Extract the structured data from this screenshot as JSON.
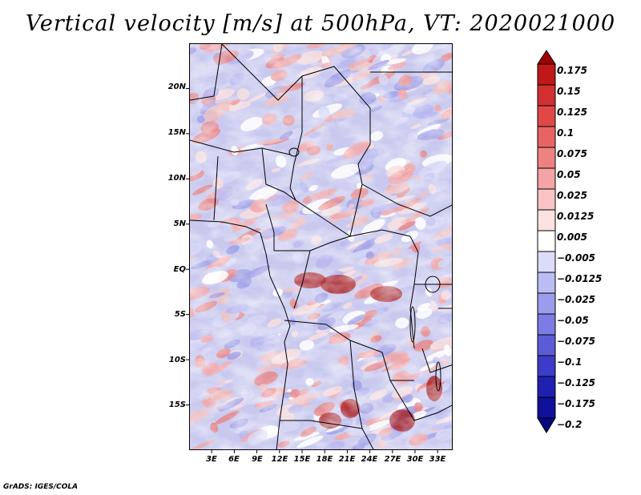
{
  "title": "Vertical velocity [m/s] at 500hPa, VT: 2020021000",
  "footer": "GrADS: IGES/COLA",
  "map": {
    "lon_range": [
      0,
      35
    ],
    "lat_range": [
      -20,
      25
    ],
    "lat_ticks": [
      {
        "label": "20N",
        "lat": 20
      },
      {
        "label": "15N",
        "lat": 15
      },
      {
        "label": "10N",
        "lat": 10
      },
      {
        "label": "5N",
        "lat": 5
      },
      {
        "label": "EQ",
        "lat": 0
      },
      {
        "label": "5S",
        "lat": -5
      },
      {
        "label": "10S",
        "lat": -10
      },
      {
        "label": "15S",
        "lat": -15
      }
    ],
    "lon_ticks": [
      {
        "label": "3E",
        "lon": 3
      },
      {
        "label": "6E",
        "lon": 6
      },
      {
        "label": "9E",
        "lon": 9
      },
      {
        "label": "12E",
        "lon": 12
      },
      {
        "label": "15E",
        "lon": 15
      },
      {
        "label": "18E",
        "lon": 18
      },
      {
        "label": "21E",
        "lon": 21
      },
      {
        "label": "24E",
        "lon": 24
      },
      {
        "label": "27E",
        "lon": 27
      },
      {
        "label": "30E",
        "lon": 30
      },
      {
        "label": "33E",
        "lon": 33
      }
    ]
  },
  "colorbar": {
    "labels": [
      "0.175",
      "0.15",
      "0.125",
      "0.1",
      "0.075",
      "0.05",
      "0.025",
      "0.0125",
      "0.005",
      "−0.005",
      "−0.0125",
      "−0.025",
      "−0.05",
      "−0.075",
      "−0.1",
      "−0.125",
      "−0.175",
      "−0.2"
    ],
    "colors": [
      "#a00000",
      "#c01818",
      "#d23030",
      "#e04848",
      "#e86464",
      "#ee8282",
      "#f4a4a4",
      "#f8c4c4",
      "#fce2e2",
      "#ffffff",
      "#dcdcfa",
      "#bcbcf4",
      "#9c9cec",
      "#7c7ce4",
      "#5c5cd8",
      "#3c3cc8",
      "#2020b0",
      "#10109a",
      "#080880"
    ]
  }
}
